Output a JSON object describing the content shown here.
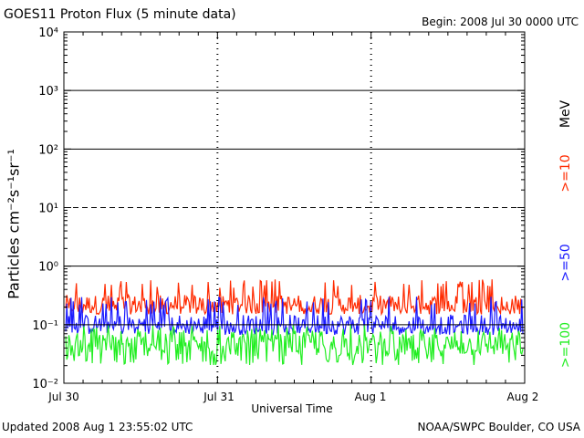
{
  "header": {
    "title": "GOES11 Proton Flux (5 minute data)",
    "begin": "Begin: 2008 Jul 30 0000 UTC"
  },
  "footer": {
    "updated": "Updated 2008 Aug  1 23:55:02 UTC",
    "credit": "NOAA/SWPC Boulder, CO USA"
  },
  "chart_data": {
    "type": "line",
    "ylabel": "Particles cm⁻²s⁻¹sr⁻¹",
    "xlabel": "Universal Time",
    "yscale": "log",
    "ylim": [
      0.01,
      10000
    ],
    "y_ticks": [
      "10⁻²",
      "10⁻¹",
      "10⁰",
      "10¹",
      "10²",
      "10³",
      "10⁴"
    ],
    "x_ticks": [
      "Jul 30",
      "Jul 31",
      "Aug 1",
      "Aug 2"
    ],
    "xlim": [
      "2008-07-30 00:00",
      "2008-08-02 00:00"
    ],
    "legend_unit": "MeV",
    "thresholds": [
      {
        "name": "Event threshold",
        "value": 10,
        "style": "dashed"
      }
    ],
    "series": [
      {
        "name": ">=10",
        "color": "#ff2a00",
        "typical_range": [
          0.15,
          0.6
        ],
        "median": 0.22
      },
      {
        "name": ">=50",
        "color": "#1a1aff",
        "typical_range": [
          0.07,
          0.3
        ],
        "median": 0.1
      },
      {
        "name": ">=100",
        "color": "#22ee22",
        "typical_range": [
          0.02,
          0.1
        ],
        "median": 0.045
      }
    ]
  }
}
